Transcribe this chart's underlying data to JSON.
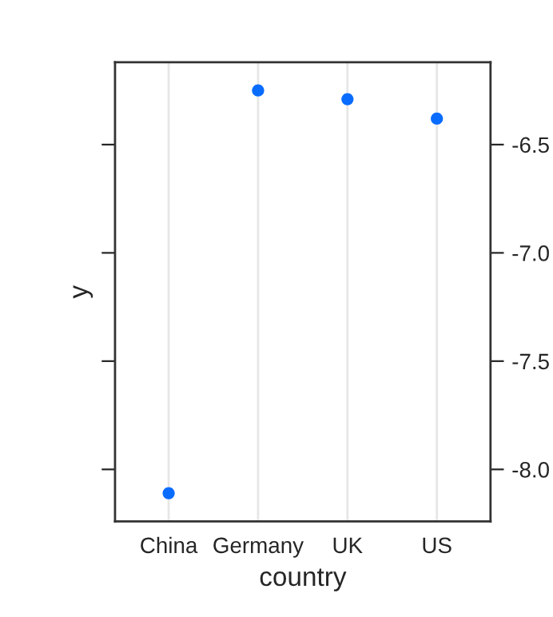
{
  "chart_data": {
    "type": "scatter",
    "xlabel": "country",
    "ylabel": "y",
    "categories": [
      "China",
      "Germany",
      "UK",
      "US"
    ],
    "series": [
      {
        "color": "#0a6cff",
        "values": [
          -8.11,
          -6.25,
          -6.29,
          -6.38
        ]
      }
    ],
    "ylim": [
      -8.24,
      -6.12
    ],
    "yticks": [
      {
        "value": -8.0,
        "label": "-8.0"
      },
      {
        "value": -7.5,
        "label": "-7.5"
      },
      {
        "value": -7.0,
        "label": "-7.0"
      },
      {
        "value": -6.5,
        "label": "-6.5"
      }
    ],
    "grid": "x",
    "marker": "circle"
  }
}
